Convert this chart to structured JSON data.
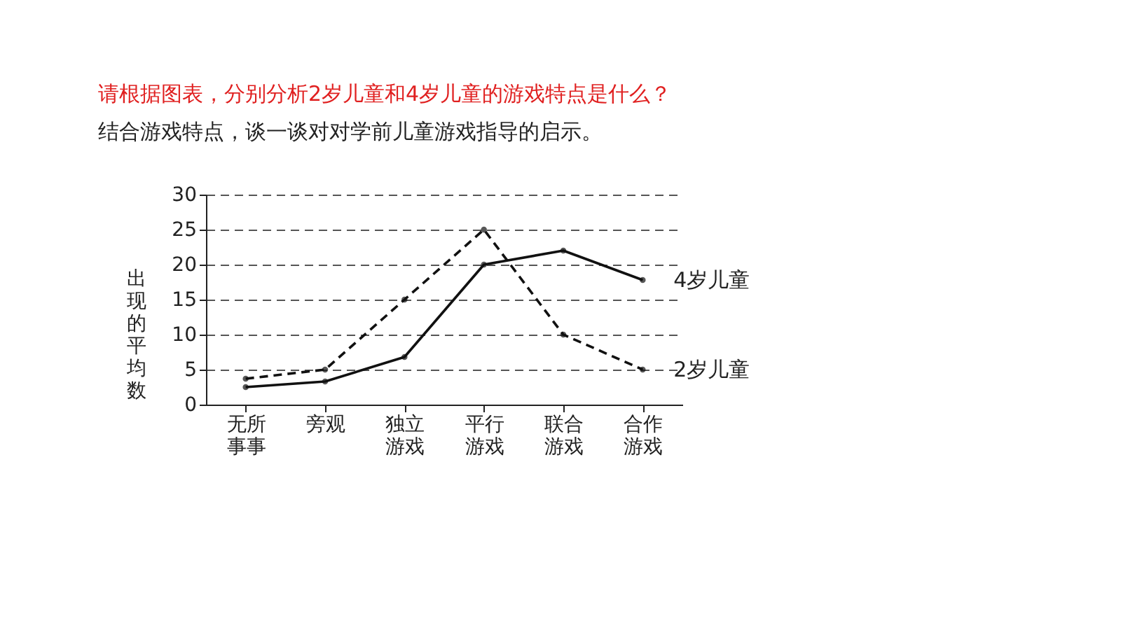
{
  "chart_data": {
    "type": "line",
    "title": "请根据图表，分别分析2岁儿童和4岁儿童的游戏特点是什么？",
    "subtitle": "结合游戏特点，谈一谈对对学前儿童游戏指导的启示。",
    "ylabel": "出现的平均数",
    "categories": [
      "无所事事",
      "旁观",
      "独立游戏",
      "平行游戏",
      "联合游戏",
      "合作游戏"
    ],
    "series": [
      {
        "name": "4岁儿童",
        "color": "#111111",
        "line_style": "solid",
        "values": [
          2.5,
          3.3,
          6.8,
          20,
          22,
          17.8
        ]
      },
      {
        "name": "2岁儿童",
        "color": "#111111",
        "line_style": "dashed",
        "values": [
          3.7,
          5,
          15,
          25,
          10,
          5
        ]
      }
    ],
    "ylim": [
      0,
      30
    ],
    "yticks": [
      0,
      5,
      10,
      15,
      20,
      25,
      30
    ],
    "grid": "y",
    "marker": "circle"
  }
}
